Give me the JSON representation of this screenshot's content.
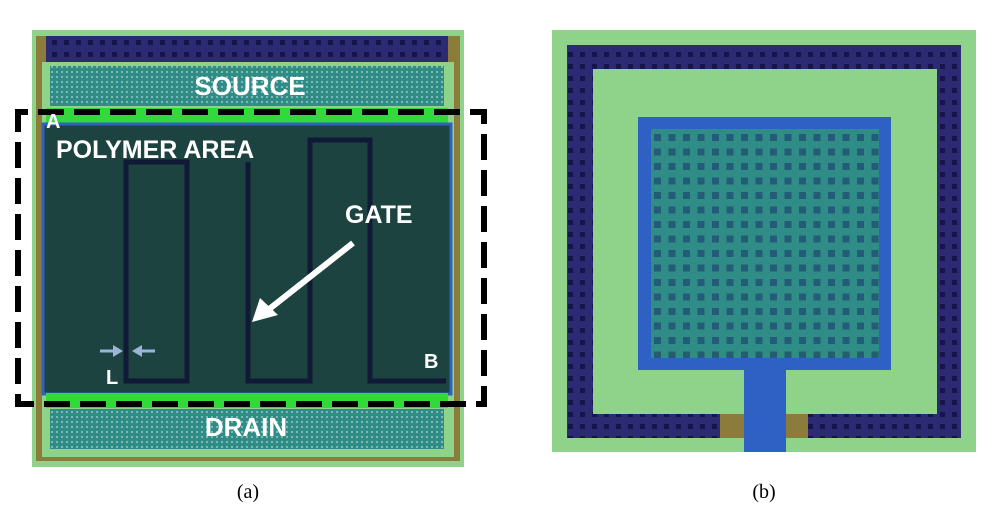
{
  "panel_a": {
    "source_label": "SOURCE",
    "drain_label": "DRAIN",
    "polymer_label": "POLYMER AREA",
    "gate_label": "GATE",
    "point_a": "A",
    "point_b": "B",
    "length_label": "L",
    "caption": "(a)"
  },
  "panel_b": {
    "caption": "(b)"
  },
  "colors": {
    "light_green": "#8fd38a",
    "olive": "#8c7c3c",
    "navy": "#2b2a72",
    "teal_contact": "#2f8c86",
    "dark_polymer": "#1c433f",
    "bright_green": "#33d83a",
    "blue_border": "#2f61c4",
    "contact_dot": "#23446e",
    "dashed": "#000000"
  }
}
